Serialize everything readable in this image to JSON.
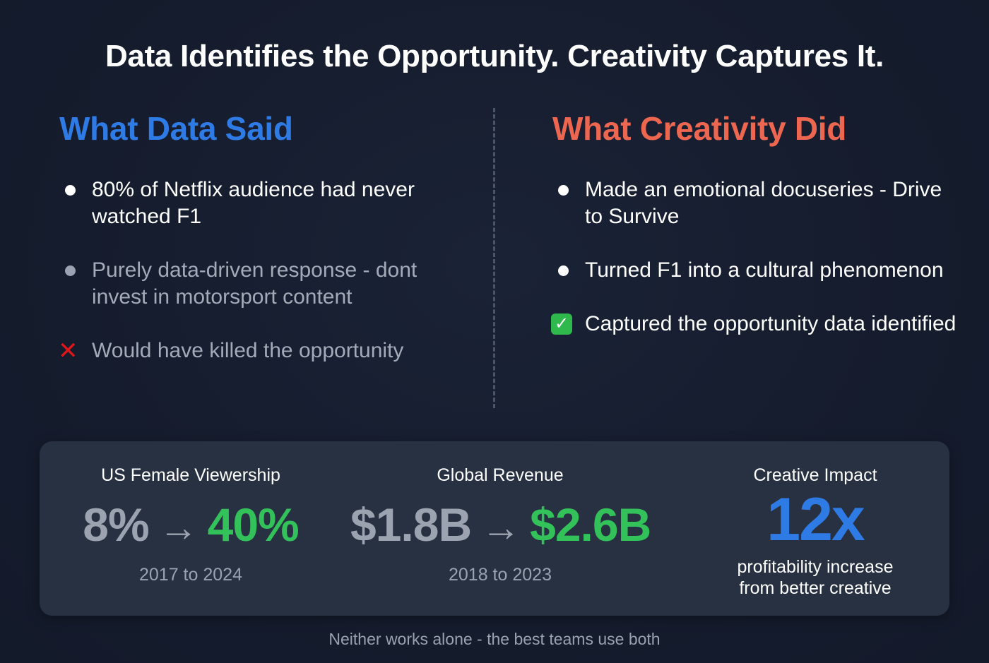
{
  "title": "Data Identifies the Opportunity. Creativity Captures It.",
  "left_column": {
    "heading": "What Data Said",
    "heading_color": "#2f7be6",
    "items": [
      {
        "marker": "bullet-white",
        "text": "80% of Netflix audience had never watched F1"
      },
      {
        "marker": "bullet-gray",
        "text": "Purely data-driven response - dont invest in motorsport content"
      },
      {
        "marker": "cross-mark-icon",
        "text": "Would have killed the opportunity"
      }
    ]
  },
  "right_column": {
    "heading": "What Creativity Did",
    "heading_color": "#ec6650",
    "items": [
      {
        "marker": "bullet-white",
        "text": "Made an emotional docuseries - Drive to Survive"
      },
      {
        "marker": "bullet-white",
        "text": "Turned F1 into a cultural phenomenon"
      },
      {
        "marker": "check-mark-icon",
        "text": "Captured the opportunity data identified"
      }
    ]
  },
  "stats": {
    "female_viewership": {
      "label": "US Female Viewership",
      "from": "8%",
      "arrow": "→",
      "to": "40%",
      "period": "2017 to 2024"
    },
    "global_revenue": {
      "label": "Global Revenue",
      "from": "$1.8B",
      "arrow": "→",
      "to": "$2.6B",
      "period": "2018 to 2023"
    },
    "creative_impact": {
      "label": "Creative Impact",
      "value": "12x",
      "description_line1": "profitability increase",
      "description_line2": "from better creative"
    }
  },
  "colors": {
    "background": "#161d2f",
    "panel": "#283142",
    "positive": "#33c15a",
    "muted": "#9ba3b0",
    "accent_blue": "#2f7be6",
    "accent_red": "#ec6650"
  },
  "footer": "Neither works alone - the best teams use both"
}
